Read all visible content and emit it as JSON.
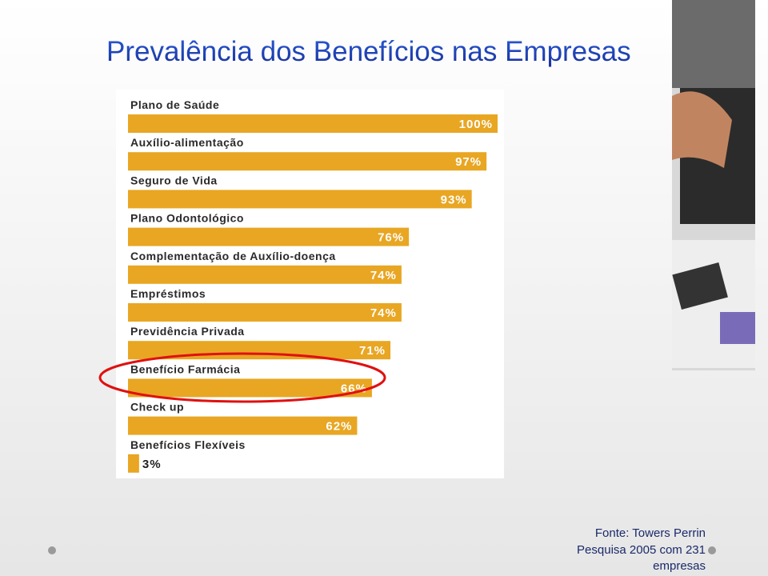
{
  "chart_data": {
    "type": "bar",
    "title": "Prevalência dos Benefícios nas Empresas",
    "categories": [
      "Plano de Saúde",
      "Auxílio-alimentação",
      "Seguro de Vida",
      "Plano Odontológico",
      "Complementação de Auxílio-doença",
      "Empréstimos",
      "Previdência Privada",
      "Benefício Farmácia",
      "Check up",
      "Benefícios Flexíveis"
    ],
    "values": [
      100,
      97,
      93,
      76,
      74,
      74,
      71,
      66,
      62,
      3
    ],
    "value_labels": [
      "100%",
      "97%",
      "93%",
      "76%",
      "74%",
      "74%",
      "71%",
      "66%",
      "62%",
      "3%"
    ],
    "color": "#e8a623",
    "source": [
      "Fonte: Towers Perrin",
      "Pesquisa 2005 com 231",
      "empresas"
    ]
  }
}
